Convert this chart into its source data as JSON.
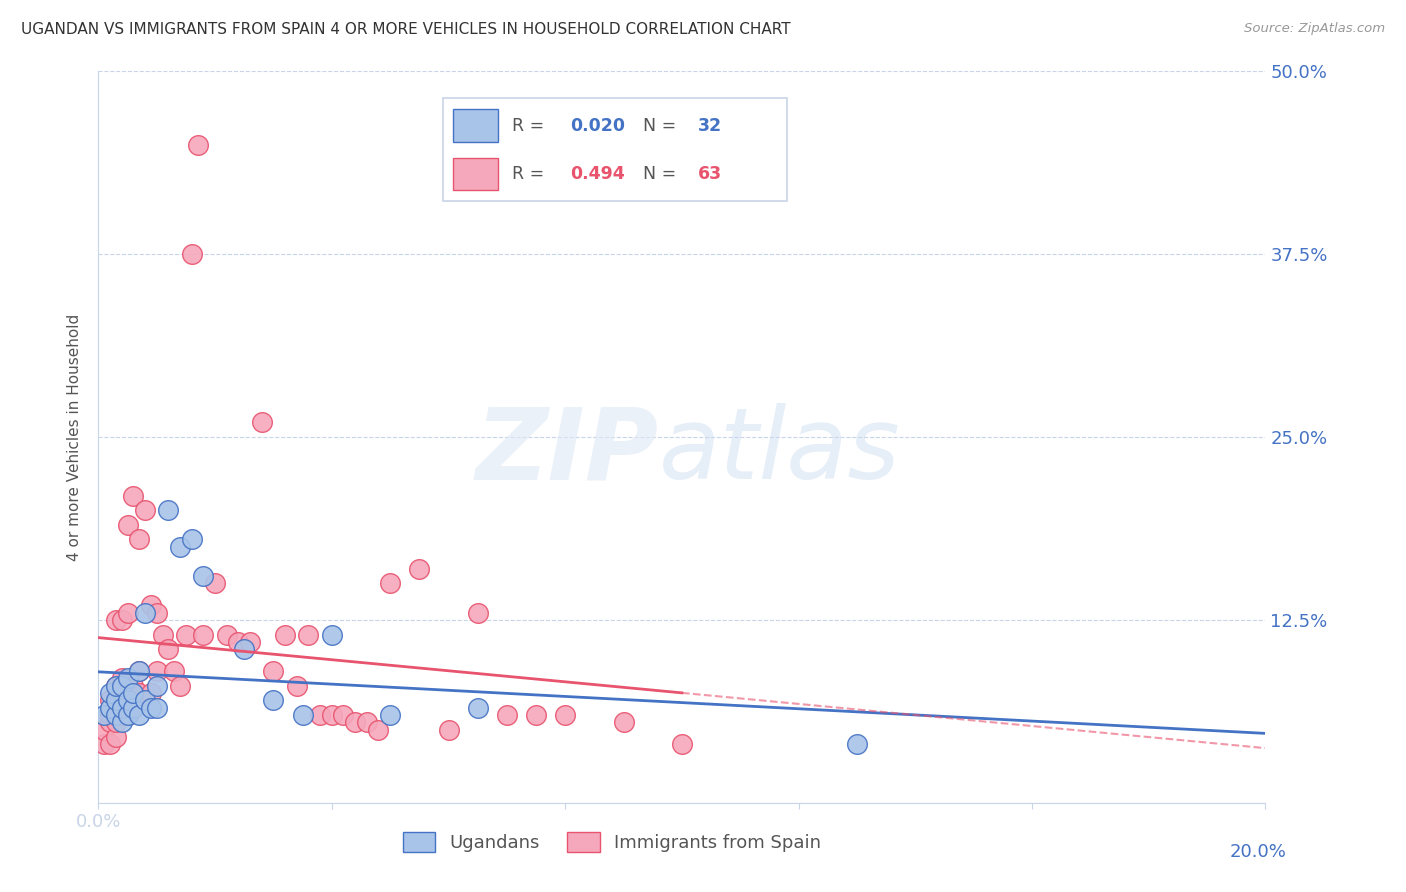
{
  "title": "UGANDAN VS IMMIGRANTS FROM SPAIN 4 OR MORE VEHICLES IN HOUSEHOLD CORRELATION CHART",
  "source": "Source: ZipAtlas.com",
  "ylabel": "4 or more Vehicles in Household",
  "xlim": [
    0.0,
    0.2
  ],
  "ylim": [
    0.0,
    0.5
  ],
  "blue_R": 0.02,
  "blue_N": 32,
  "pink_R": 0.494,
  "pink_N": 63,
  "legend_label_blue": "Ugandans",
  "legend_label_pink": "Immigrants from Spain",
  "blue_color": "#a8c4e8",
  "pink_color": "#f5a8bc",
  "blue_line_color": "#4472c4",
  "pink_line_color": "#e8536e",
  "blue_scatter_x": [
    0.001,
    0.002,
    0.002,
    0.003,
    0.003,
    0.003,
    0.004,
    0.004,
    0.004,
    0.005,
    0.005,
    0.005,
    0.006,
    0.006,
    0.007,
    0.007,
    0.008,
    0.008,
    0.009,
    0.01,
    0.01,
    0.012,
    0.014,
    0.016,
    0.018,
    0.025,
    0.03,
    0.035,
    0.04,
    0.05,
    0.065,
    0.13
  ],
  "blue_scatter_y": [
    0.06,
    0.065,
    0.075,
    0.06,
    0.07,
    0.08,
    0.055,
    0.065,
    0.08,
    0.06,
    0.07,
    0.085,
    0.065,
    0.075,
    0.06,
    0.09,
    0.07,
    0.13,
    0.065,
    0.08,
    0.065,
    0.2,
    0.175,
    0.18,
    0.155,
    0.105,
    0.07,
    0.06,
    0.115,
    0.06,
    0.065,
    0.04
  ],
  "pink_scatter_x": [
    0.001,
    0.001,
    0.002,
    0.002,
    0.002,
    0.002,
    0.003,
    0.003,
    0.003,
    0.003,
    0.003,
    0.004,
    0.004,
    0.004,
    0.004,
    0.005,
    0.005,
    0.005,
    0.005,
    0.006,
    0.006,
    0.006,
    0.007,
    0.007,
    0.007,
    0.008,
    0.008,
    0.009,
    0.009,
    0.01,
    0.01,
    0.011,
    0.012,
    0.013,
    0.014,
    0.015,
    0.016,
    0.017,
    0.018,
    0.02,
    0.022,
    0.024,
    0.026,
    0.028,
    0.03,
    0.032,
    0.034,
    0.036,
    0.038,
    0.04,
    0.042,
    0.044,
    0.046,
    0.048,
    0.05,
    0.055,
    0.06,
    0.065,
    0.07,
    0.075,
    0.08,
    0.09,
    0.1
  ],
  "pink_scatter_y": [
    0.04,
    0.05,
    0.04,
    0.055,
    0.06,
    0.07,
    0.045,
    0.055,
    0.065,
    0.08,
    0.125,
    0.06,
    0.075,
    0.085,
    0.125,
    0.06,
    0.07,
    0.13,
    0.19,
    0.065,
    0.08,
    0.21,
    0.075,
    0.09,
    0.18,
    0.07,
    0.2,
    0.075,
    0.135,
    0.09,
    0.13,
    0.115,
    0.105,
    0.09,
    0.08,
    0.115,
    0.375,
    0.45,
    0.115,
    0.15,
    0.115,
    0.11,
    0.11,
    0.26,
    0.09,
    0.115,
    0.08,
    0.115,
    0.06,
    0.06,
    0.06,
    0.055,
    0.055,
    0.05,
    0.15,
    0.16,
    0.05,
    0.13,
    0.06,
    0.06,
    0.06,
    0.055,
    0.04
  ]
}
